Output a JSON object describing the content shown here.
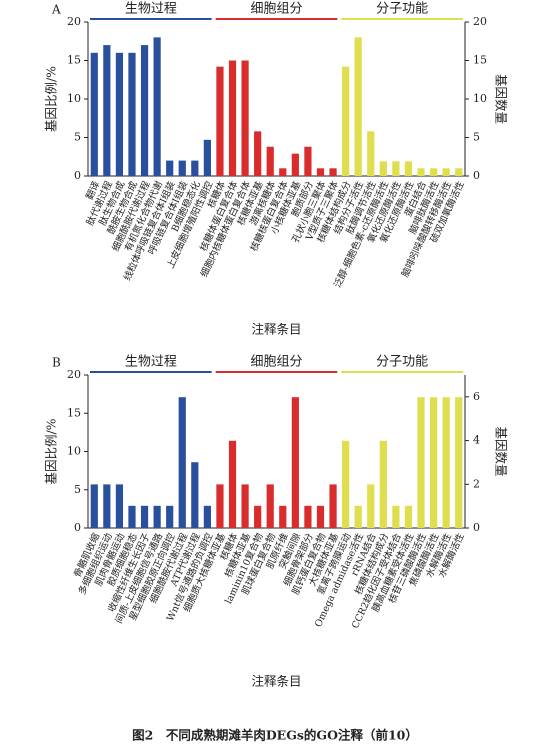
{
  "chart_data": [
    {
      "type": "bar",
      "title": "A",
      "ylabel": "基因比例/%",
      "y2label": "基因数量",
      "xlabel": "注释条目",
      "ylim": [
        0,
        20
      ],
      "yticks": [
        0,
        5,
        10,
        15,
        20
      ],
      "y2lim": [
        0,
        20
      ],
      "y2ticks": [
        0,
        5,
        10,
        15,
        20
      ],
      "series": [
        {
          "name": "生物过程",
          "color": "#2a4f9c",
          "categories": [
            "翻译",
            "肽代谢过程",
            "肽生物合成",
            "酰胺生物合成",
            "细胞酰胺代谢过程",
            "有机氮化合物代谢",
            "线粒体呼吸链复合体Ⅰ组装",
            "呼吸链复合体Ⅰ组装",
            "B细胞稳态化",
            "上皮细胞增殖阳性调控"
          ],
          "values": [
            16,
            17,
            16,
            16,
            17,
            18,
            2,
            2,
            2,
            4.7
          ]
        },
        {
          "name": "细胞组分",
          "color": "#d92d2d",
          "categories": [
            "核糖体",
            "核糖体蛋白复合体",
            "细胞内核糖体蛋白复合体",
            "核糖体亚基",
            "游离核糖体",
            "核糖核蛋白复合体",
            "小核糖体亚基",
            "胞质部分",
            "孔状小胞三聚体",
            "V型质子三聚体"
          ],
          "values": [
            14.2,
            15,
            15,
            5.8,
            3.8,
            1,
            2.9,
            3.8,
            1,
            1
          ]
        },
        {
          "name": "分子功能",
          "color": "#dede4e",
          "categories": [
            "核糖体结构成分",
            "结构分子活性",
            "肽酶调节活性",
            "泛醇-细胞色素-c还原酶活性",
            "氧化还原酶活性",
            "氧化还原酶活性",
            "蛋白结合",
            "脑啡肽酶活性",
            "脑啡吲哚酸酸转移酶活性",
            "硫双加氧酶活性"
          ],
          "values": [
            14.2,
            18,
            5.8,
            1.9,
            1.9,
            1.9,
            1,
            1,
            1,
            1
          ]
        }
      ]
    },
    {
      "type": "bar",
      "title": "B",
      "ylabel": "基因比例/%",
      "y2label": "基因数量",
      "xlabel": "注释条目",
      "ylim": [
        0,
        20
      ],
      "yticks": [
        0,
        5,
        10,
        15,
        20
      ],
      "y2lim": [
        0,
        7
      ],
      "y2ticks": [
        0,
        2,
        4,
        6
      ],
      "series": [
        {
          "name": "生物过程",
          "color": "#2a4f9c",
          "categories": [
            "骨骼肌收缩",
            "多细胞组织运动",
            "肌肉骨骼运动",
            "胶质细胞稳态",
            "收缩性纤维生长因子",
            "间质-上皮细胞信号通路",
            "星型细胞胶原正向调控",
            "细胞酰胺代谢过程",
            "ATP代谢过程",
            "Wnt信号通路的负调控"
          ],
          "values": [
            5.7,
            5.7,
            5.7,
            2.9,
            2.9,
            2.9,
            2.9,
            17.1,
            8.6,
            2.9
          ]
        },
        {
          "name": "细胞组分",
          "color": "#d92d2d",
          "categories": [
            "细胞质大核糖体亚基",
            "核糖体",
            "核糖体亚基",
            "laminin10复合物",
            "肌球蛋白复合物",
            "肌原纤维",
            "突触间隙",
            "细胞骨架部分",
            "肌钙蛋白复合物",
            "大核糖体亚基"
          ],
          "values": [
            5.7,
            11.4,
            5.7,
            2.9,
            5.7,
            2.9,
            17.1,
            2.9,
            2.9,
            5.7
          ]
        },
        {
          "name": "分子功能",
          "color": "#dede4e",
          "categories": [
            "氢离子跨膜运动",
            "Omega admidase活性",
            "rRNA结合",
            "核糖体结构成分",
            "CCR2趋化因子受体结合",
            "胰高血糖素受体活性",
            "核苷三磷酸酶活性",
            "焦磷酸酶活性",
            "水解酶活性",
            "水解酶活性"
          ],
          "values": [
            11.4,
            2.9,
            5.7,
            11.4,
            2.9,
            2.9,
            17.1,
            17.1,
            17.1,
            17.1
          ]
        }
      ]
    }
  ],
  "caption": "图2　不同成熟期滩羊肉DEGs的GO注释（前10）"
}
